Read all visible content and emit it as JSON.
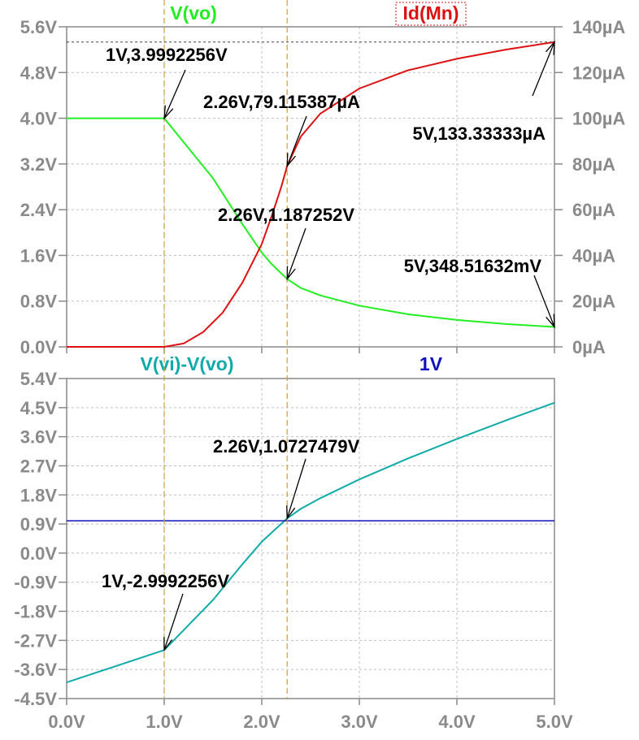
{
  "colors": {
    "vo": "#22ee22",
    "id": "#dd1111",
    "diff": "#11aaaa",
    "ref": "#1111bb",
    "cursor": "#c8a040",
    "grid": "#c0c0c0",
    "axis": "#8a8a8a",
    "annotation": "#000000"
  },
  "chart_data": [
    {
      "type": "line",
      "title": "",
      "xlabel": "",
      "ylabel": "",
      "y2label": "",
      "xlim": [
        0,
        5
      ],
      "ylim": [
        0,
        5.6
      ],
      "y2lim": [
        0,
        140
      ],
      "grid": true,
      "x_ticks": [
        0,
        1,
        2,
        3,
        4,
        5
      ],
      "y_tick_labels": [
        "0.0V",
        "0.8V",
        "1.6V",
        "2.4V",
        "3.2V",
        "4.0V",
        "4.8V",
        "5.6V"
      ],
      "y2_tick_labels": [
        "0µA",
        "20µA",
        "40µA",
        "60µA",
        "80µA",
        "100µA",
        "120µA",
        "140µA"
      ],
      "series": [
        {
          "name": "V(vo)",
          "axis": "left",
          "color_key": "vo",
          "points": [
            [
              0,
              4.0
            ],
            [
              1,
              3.9992
            ],
            [
              1.5,
              2.95
            ],
            [
              1.8,
              2.15
            ],
            [
              2.0,
              1.65
            ],
            [
              2.1,
              1.45
            ],
            [
              2.26,
              1.1873
            ],
            [
              2.4,
              1.03
            ],
            [
              2.6,
              0.9
            ],
            [
              3.0,
              0.72
            ],
            [
              3.5,
              0.57
            ],
            [
              4.0,
              0.47
            ],
            [
              4.5,
              0.4
            ],
            [
              5.0,
              0.3485
            ]
          ]
        },
        {
          "name": "Id(Mn)",
          "axis": "right",
          "color_key": "id",
          "points": [
            [
              0,
              0
            ],
            [
              1,
              0
            ],
            [
              1.2,
              1.5
            ],
            [
              1.4,
              6.5
            ],
            [
              1.6,
              15
            ],
            [
              1.8,
              28
            ],
            [
              2.0,
              45
            ],
            [
              2.1,
              57
            ],
            [
              2.2,
              70
            ],
            [
              2.26,
              79.115
            ],
            [
              2.4,
              92
            ],
            [
              2.6,
              102
            ],
            [
              3.0,
              113
            ],
            [
              3.5,
              121
            ],
            [
              4.0,
              126
            ],
            [
              4.5,
              130
            ],
            [
              5.0,
              133.333
            ]
          ]
        }
      ],
      "cursors_x": [
        1,
        2.26
      ],
      "annotations": [
        {
          "label": "1V,3.9992256V",
          "x": 1,
          "y": 3.9992256,
          "axis": "left"
        },
        {
          "label": "2.26V,79.115387µA",
          "x": 2.26,
          "y": 79.115387,
          "axis": "right"
        },
        {
          "label": "5V,133.33333µA",
          "x": 5,
          "y": 133.33333,
          "axis": "right"
        },
        {
          "label": "2.26V,1.187252V",
          "x": 2.26,
          "y": 1.187252,
          "axis": "left"
        },
        {
          "label": "5V,348.51632mV",
          "x": 5,
          "y": 0.34851632,
          "axis": "left"
        }
      ]
    },
    {
      "type": "line",
      "title": "",
      "xlabel": "",
      "ylabel": "",
      "xlim": [
        0,
        5
      ],
      "ylim": [
        -4.5,
        5.4
      ],
      "grid": true,
      "x_ticks": [
        0,
        1,
        2,
        3,
        4,
        5
      ],
      "x_tick_labels": [
        "0.0V",
        "1.0V",
        "2.0V",
        "3.0V",
        "4.0V",
        "5.0V"
      ],
      "y_tick_labels": [
        "-4.5V",
        "-3.6V",
        "-2.7V",
        "-1.8V",
        "-0.9V",
        "0.0V",
        "0.9V",
        "1.8V",
        "2.7V",
        "3.6V",
        "4.5V",
        "5.4V"
      ],
      "series": [
        {
          "name": "V(vi)-V(vo)",
          "color_key": "diff",
          "points": [
            [
              0,
              -4.0
            ],
            [
              1,
              -2.9992
            ],
            [
              1.5,
              -1.45
            ],
            [
              1.8,
              -0.35
            ],
            [
              2.0,
              0.35
            ],
            [
              2.26,
              1.0727
            ],
            [
              2.4,
              1.37
            ],
            [
              2.6,
              1.7
            ],
            [
              3.0,
              2.28
            ],
            [
              3.5,
              2.93
            ],
            [
              4.0,
              3.53
            ],
            [
              4.5,
              4.1
            ],
            [
              5.0,
              4.65
            ]
          ]
        },
        {
          "name": "1V",
          "color_key": "ref",
          "points": [
            [
              0,
              1
            ],
            [
              5,
              1
            ]
          ]
        }
      ],
      "cursors_x": [
        1,
        2.26
      ],
      "annotations": [
        {
          "label": "2.26V,1.0727479V",
          "x": 2.26,
          "y": 1.0727479
        },
        {
          "label": "1V,-2.9992256V",
          "x": 1,
          "y": -2.9992256
        }
      ]
    }
  ]
}
